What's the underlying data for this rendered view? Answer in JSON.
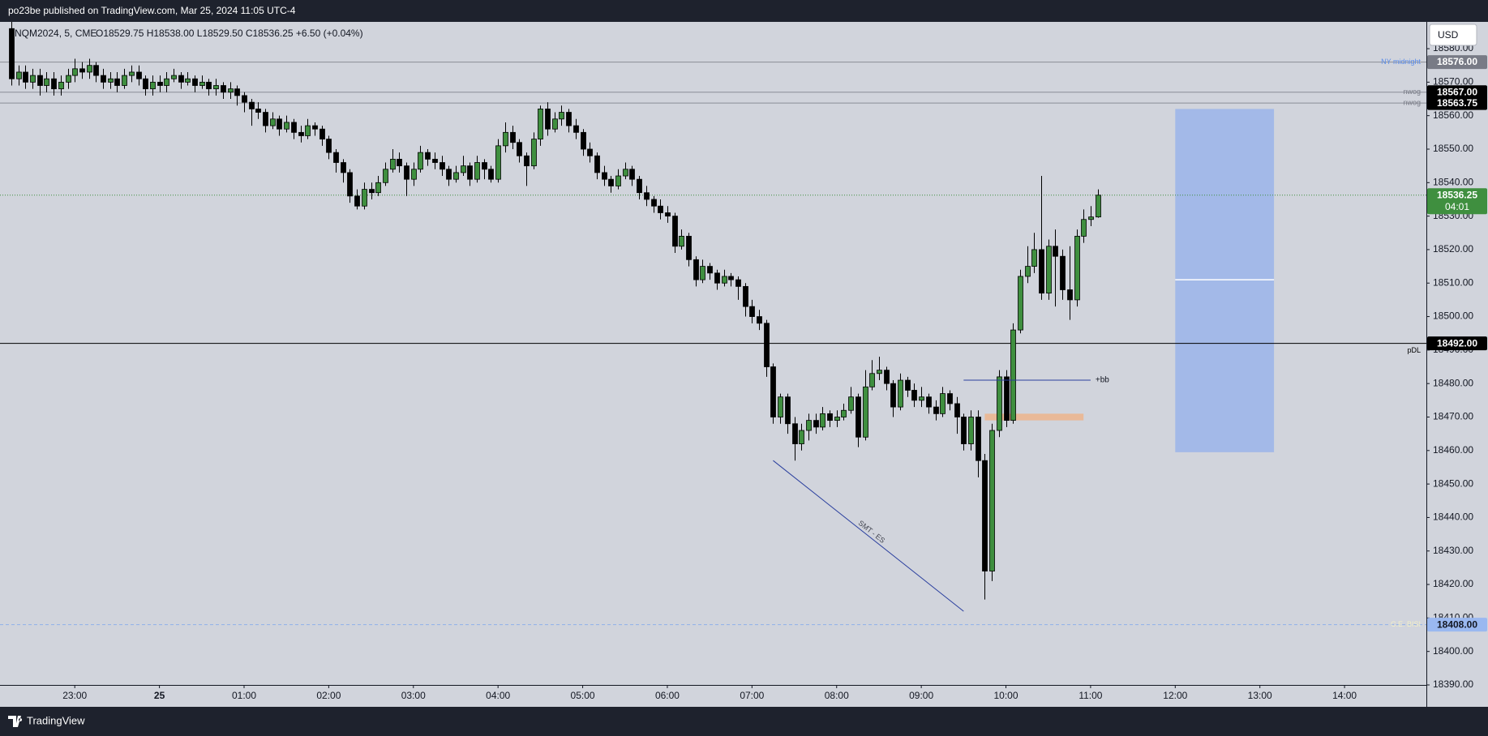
{
  "header": {
    "publisher": "po23be published on TradingView.com, Mar 25, 2024 11:05 UTC-4",
    "symbol": "NQM2024, 5, CME",
    "ohlc": "O18529.75 H18538.00 L18529.50 C18536.25 +6.50 (+0.04%)"
  },
  "toolbar": {
    "currency": "USD"
  },
  "footer": {
    "brand": "TradingView"
  },
  "chart_data": {
    "type": "candlestick",
    "up_color": "#3f8f3f",
    "down_color": "#000000",
    "wick_color": "#000000",
    "xlim": [
      "22:07",
      "14:58"
    ],
    "ylim": [
      18390,
      18588
    ],
    "xticks": [
      "23:00",
      {
        "value": "00:00",
        "label": "25"
      },
      "01:00",
      "02:00",
      "03:00",
      "04:00",
      "05:00",
      "06:00",
      "07:00",
      "08:00",
      "09:00",
      "10:00",
      "11:00",
      "12:00",
      "13:00",
      "14:00"
    ],
    "yticks": [
      {
        "value": 18390,
        "label": "18390.00"
      },
      {
        "value": 18400,
        "label": "18400.00"
      },
      {
        "value": 18410,
        "label": "18410.00"
      },
      {
        "value": 18420,
        "label": "18420.00"
      },
      {
        "value": 18430,
        "label": "18430.00"
      },
      {
        "value": 18440,
        "label": "18440.00"
      },
      {
        "value": 18450,
        "label": "18450.00"
      },
      {
        "value": 18460,
        "label": "18460.00"
      },
      {
        "value": 18470,
        "label": "18470.00"
      },
      {
        "value": 18480,
        "label": "18480.00"
      },
      {
        "value": 18490,
        "label": "18490.00"
      },
      {
        "value": 18500,
        "label": "18500.00"
      },
      {
        "value": 18510,
        "label": "18510.00"
      },
      {
        "value": 18520,
        "label": "18520.00"
      },
      {
        "value": 18530,
        "label": "18530.00"
      },
      {
        "value": 18540,
        "label": "18540.00"
      },
      {
        "value": 18550,
        "label": "18550.00"
      },
      {
        "value": 18560,
        "label": "18560.00"
      },
      {
        "value": 18570,
        "label": "18570.00"
      },
      {
        "value": 18580,
        "label": "18580.00"
      }
    ],
    "x": [
      "22:15",
      "22:20",
      "22:25",
      "22:30",
      "22:35",
      "22:40",
      "22:45",
      "22:50",
      "22:55",
      "23:00",
      "23:05",
      "23:10",
      "23:15",
      "23:20",
      "23:25",
      "23:30",
      "23:35",
      "23:40",
      "23:45",
      "23:50",
      "23:55",
      "00:00",
      "00:05",
      "00:10",
      "00:15",
      "00:20",
      "00:25",
      "00:30",
      "00:35",
      "00:40",
      "00:45",
      "00:50",
      "00:55",
      "01:00",
      "01:05",
      "01:10",
      "01:15",
      "01:20",
      "01:25",
      "01:30",
      "01:35",
      "01:40",
      "01:45",
      "01:50",
      "01:55",
      "02:00",
      "02:05",
      "02:10",
      "02:15",
      "02:20",
      "02:25",
      "02:30",
      "02:35",
      "02:40",
      "02:45",
      "02:50",
      "02:55",
      "03:00",
      "03:05",
      "03:10",
      "03:15",
      "03:20",
      "03:25",
      "03:30",
      "03:35",
      "03:40",
      "03:45",
      "03:50",
      "03:55",
      "04:00",
      "04:05",
      "04:10",
      "04:15",
      "04:20",
      "04:25",
      "04:30",
      "04:35",
      "04:40",
      "04:45",
      "04:50",
      "04:55",
      "05:00",
      "05:05",
      "05:10",
      "05:15",
      "05:20",
      "05:25",
      "05:30",
      "05:35",
      "05:40",
      "05:45",
      "05:50",
      "05:55",
      "06:00",
      "06:05",
      "06:10",
      "06:15",
      "06:20",
      "06:25",
      "06:30",
      "06:35",
      "06:40",
      "06:45",
      "06:50",
      "06:55",
      "07:00",
      "07:05",
      "07:10",
      "07:15",
      "07:20",
      "07:25",
      "07:30",
      "07:35",
      "07:40",
      "07:45",
      "07:50",
      "07:55",
      "08:00",
      "08:05",
      "08:10",
      "08:15",
      "08:20",
      "08:25",
      "08:30",
      "08:35",
      "08:40",
      "08:45",
      "08:50",
      "08:55",
      "09:00",
      "09:05",
      "09:10",
      "09:15",
      "09:20",
      "09:25",
      "09:30",
      "09:35",
      "09:40",
      "09:45",
      "09:50",
      "09:55",
      "10:00",
      "10:05",
      "10:10",
      "10:15",
      "10:20",
      "10:25",
      "10:30",
      "10:35",
      "10:40",
      "10:45",
      "10:50",
      "10:55",
      "11:00",
      "11:05"
    ],
    "candles": [
      [
        18586,
        18588,
        18569,
        18571
      ],
      [
        18571,
        18575,
        18569,
        18573
      ],
      [
        18573,
        18575,
        18568,
        18570
      ],
      [
        18570,
        18574,
        18568,
        18572
      ],
      [
        18572,
        18574,
        18566,
        18569
      ],
      [
        18569,
        18573,
        18567,
        18571
      ],
      [
        18571,
        18573,
        18566,
        18568
      ],
      [
        18568,
        18572,
        18566,
        18570
      ],
      [
        18570,
        18574,
        18568,
        18572
      ],
      [
        18572,
        18577,
        18570,
        18574
      ],
      [
        18574,
        18576,
        18571,
        18573
      ],
      [
        18573,
        18577,
        18571,
        18575
      ],
      [
        18575,
        18576,
        18570,
        18572
      ],
      [
        18572,
        18574,
        18568,
        18570
      ],
      [
        18570,
        18573,
        18568,
        18571
      ],
      [
        18571,
        18573,
        18567,
        18569
      ],
      [
        18569,
        18574,
        18568,
        18572
      ],
      [
        18572,
        18575,
        18570,
        18573
      ],
      [
        18573,
        18575,
        18569,
        18571
      ],
      [
        18571,
        18572,
        18566,
        18568
      ],
      [
        18568,
        18572,
        18566,
        18570
      ],
      [
        18570,
        18572,
        18567,
        18569
      ],
      [
        18569,
        18573,
        18567,
        18571
      ],
      [
        18571,
        18574,
        18570,
        18572
      ],
      [
        18572,
        18573,
        18568,
        18570
      ],
      [
        18570,
        18573,
        18569,
        18571
      ],
      [
        18571,
        18572,
        18567,
        18569
      ],
      [
        18569,
        18572,
        18568,
        18570
      ],
      [
        18570,
        18571,
        18566,
        18568
      ],
      [
        18568,
        18571,
        18566,
        18569
      ],
      [
        18569,
        18570,
        18565,
        18567
      ],
      [
        18567,
        18570,
        18565,
        18568
      ],
      [
        18568,
        18569,
        18563,
        18566
      ],
      [
        18566,
        18567,
        18561,
        18564
      ],
      [
        18564,
        18565,
        18557,
        18562
      ],
      [
        18562,
        18564,
        18559,
        18561
      ],
      [
        18561,
        18562,
        18555,
        18557
      ],
      [
        18557,
        18561,
        18556,
        18559
      ],
      [
        18559,
        18560,
        18554,
        18556
      ],
      [
        18556,
        18560,
        18555,
        18558
      ],
      [
        18558,
        18559,
        18553,
        18555
      ],
      [
        18555,
        18557,
        18552,
        18554
      ],
      [
        18554,
        18559,
        18553,
        18557
      ],
      [
        18557,
        18558,
        18554,
        18556
      ],
      [
        18556,
        18557,
        18551,
        18553
      ],
      [
        18553,
        18554,
        18547,
        18549
      ],
      [
        18549,
        18550,
        18543,
        18546
      ],
      [
        18546,
        18547,
        18540,
        18543
      ],
      [
        18543,
        18544,
        18534,
        18536
      ],
      [
        18536,
        18538,
        18532,
        18533
      ],
      [
        18533,
        18540,
        18532,
        18538
      ],
      [
        18538,
        18540,
        18535,
        18537
      ],
      [
        18537,
        18542,
        18536,
        18540
      ],
      [
        18540,
        18546,
        18539,
        18544
      ],
      [
        18544,
        18550,
        18543,
        18547
      ],
      [
        18547,
        18549,
        18543,
        18545
      ],
      [
        18545,
        18546,
        18536,
        18541
      ],
      [
        18541,
        18546,
        18539,
        18544
      ],
      [
        18544,
        18551,
        18543,
        18549
      ],
      [
        18549,
        18550,
        18545,
        18547
      ],
      [
        18547,
        18549,
        18544,
        18546
      ],
      [
        18546,
        18548,
        18542,
        18544
      ],
      [
        18544,
        18545,
        18539,
        18541
      ],
      [
        18541,
        18545,
        18540,
        18543
      ],
      [
        18543,
        18548,
        18542,
        18545
      ],
      [
        18545,
        18546,
        18539,
        18541
      ],
      [
        18541,
        18548,
        18540,
        18546
      ],
      [
        18546,
        18547,
        18541,
        18544
      ],
      [
        18544,
        18545,
        18540,
        18541
      ],
      [
        18541,
        18553,
        18540,
        18551
      ],
      [
        18551,
        18558,
        18549,
        18555
      ],
      [
        18555,
        18557,
        18550,
        18552
      ],
      [
        18552,
        18553,
        18546,
        18548
      ],
      [
        18548,
        18549,
        18539,
        18545
      ],
      [
        18545,
        18555,
        18544,
        18553
      ],
      [
        18553,
        18563,
        18551,
        18562
      ],
      [
        18562,
        18564,
        18554,
        18556
      ],
      [
        18556,
        18561,
        18555,
        18559
      ],
      [
        18559,
        18563,
        18557,
        18561
      ],
      [
        18561,
        18562,
        18555,
        18557
      ],
      [
        18557,
        18559,
        18553,
        18555
      ],
      [
        18555,
        18556,
        18548,
        18550
      ],
      [
        18550,
        18552,
        18546,
        18548
      ],
      [
        18548,
        18549,
        18541,
        18543
      ],
      [
        18543,
        18545,
        18539,
        18541
      ],
      [
        18541,
        18542,
        18537,
        18539
      ],
      [
        18539,
        18544,
        18538,
        18542
      ],
      [
        18542,
        18546,
        18541,
        18544
      ],
      [
        18544,
        18545,
        18539,
        18541
      ],
      [
        18541,
        18542,
        18535,
        18537
      ],
      [
        18537,
        18539,
        18533,
        18535
      ],
      [
        18535,
        18536,
        18531,
        18533
      ],
      [
        18533,
        18535,
        18529,
        18531
      ],
      [
        18531,
        18533,
        18528,
        18530
      ],
      [
        18530,
        18531,
        18519,
        18521
      ],
      [
        18521,
        18526,
        18520,
        18524
      ],
      [
        18524,
        18525,
        18515,
        18517
      ],
      [
        18517,
        18518,
        18509,
        18511
      ],
      [
        18511,
        18517,
        18510,
        18515
      ],
      [
        18515,
        18516,
        18511,
        18513
      ],
      [
        18513,
        18514,
        18508,
        18510
      ],
      [
        18510,
        18514,
        18509,
        18512
      ],
      [
        18512,
        18513,
        18509,
        18511
      ],
      [
        18511,
        18512,
        18505,
        18509
      ],
      [
        18509,
        18510,
        18500,
        18503
      ],
      [
        18503,
        18505,
        18498,
        18500
      ],
      [
        18500,
        18502,
        18496,
        18498
      ],
      [
        18498,
        18499,
        18482,
        18485
      ],
      [
        18485,
        18486,
        18468,
        18470
      ],
      [
        18470,
        18477,
        18468,
        18476
      ],
      [
        18476,
        18477,
        18465,
        18468
      ],
      [
        18468,
        18470,
        18457,
        18462
      ],
      [
        18462,
        18468,
        18460,
        18466
      ],
      [
        18466,
        18471,
        18463,
        18469
      ],
      [
        18469,
        18471,
        18465,
        18467
      ],
      [
        18467,
        18473,
        18466,
        18471
      ],
      [
        18471,
        18472,
        18467,
        18469
      ],
      [
        18469,
        18472,
        18467,
        18470
      ],
      [
        18470,
        18474,
        18469,
        18472
      ],
      [
        18472,
        18479,
        18471,
        18476
      ],
      [
        18476,
        18477,
        18461,
        18464
      ],
      [
        18464,
        18484,
        18463,
        18479
      ],
      [
        18479,
        18487,
        18478,
        18483
      ],
      [
        18483,
        18488,
        18481,
        18484
      ],
      [
        18484,
        18485,
        18478,
        18480
      ],
      [
        18480,
        18481,
        18470,
        18473
      ],
      [
        18473,
        18483,
        18472,
        18481
      ],
      [
        18481,
        18482,
        18476,
        18478
      ],
      [
        18478,
        18480,
        18473,
        18475
      ],
      [
        18475,
        18479,
        18473,
        18476
      ],
      [
        18476,
        18477,
        18471,
        18473
      ],
      [
        18473,
        18475,
        18469,
        18471
      ],
      [
        18471,
        18479,
        18470,
        18477
      ],
      [
        18477,
        18478,
        18472,
        18474
      ],
      [
        18474,
        18476,
        18465,
        18470
      ],
      [
        18470,
        18471,
        18460,
        18462
      ],
      [
        18462,
        18472,
        18460,
        18470
      ],
      [
        18470,
        18472,
        18452,
        18457
      ],
      [
        18457,
        18459,
        18415.5,
        18424
      ],
      [
        18424,
        18468,
        18421,
        18466
      ],
      [
        18466,
        18484,
        18464,
        18482
      ],
      [
        18482,
        18484,
        18467,
        18469
      ],
      [
        18469,
        18498,
        18468,
        18496
      ],
      [
        18496,
        18514,
        18495,
        18512
      ],
      [
        18512,
        18521,
        18510,
        18515
      ],
      [
        18515,
        18525,
        18513,
        18520
      ],
      [
        18520,
        18542,
        18505,
        18507
      ],
      [
        18507,
        18523,
        18505,
        18521
      ],
      [
        18521,
        18526,
        18503,
        18518
      ],
      [
        18518,
        18520,
        18505,
        18508
      ],
      [
        18508,
        18521,
        18499,
        18505
      ],
      [
        18505,
        18526,
        18503,
        18524
      ],
      [
        18524,
        18532,
        18522,
        18529
      ],
      [
        18529,
        18533,
        18527,
        18529.75
      ],
      [
        18529.75,
        18538,
        18529.5,
        18536.25
      ]
    ],
    "levels": [
      {
        "label": "NY midnight",
        "value": 18576,
        "tag": "18576.00",
        "color": "#8a8d96",
        "text_color": "#5b8ce8",
        "tag_color": "#787b86",
        "tag_text_color": "#ffffff",
        "style": "solid",
        "label_side": "on"
      },
      {
        "label": "nwog",
        "value": 18567,
        "tag": "18567.00",
        "color": "#8a8d96",
        "text_color": "#787b86",
        "tag_color": "#000000",
        "tag_text_color": "#ffffff",
        "style": "solid",
        "label_side": "on"
      },
      {
        "label": "nwog",
        "value": 18563.75,
        "tag": "18563.75",
        "color": "#8a8d96",
        "text_color": "#787b86",
        "tag_color": "#000000",
        "tag_text_color": "#ffffff",
        "style": "solid",
        "label_side": "on"
      },
      {
        "label": "pDL",
        "value": 18492,
        "tag": "18492.00",
        "color": "#000000",
        "text_color": "#000000",
        "tag_color": "#000000",
        "tag_text_color": "#ffffff",
        "style": "solid",
        "label_side": "below"
      },
      {
        "label": "C.E. BISI",
        "value": 18408,
        "tag": "18408.00",
        "color": "#8fb0ea",
        "text_color": "#f3efc8",
        "tag_color": "#9ab8f0",
        "tag_text_color": "#131722",
        "style": "dashed",
        "label_side": "on"
      }
    ],
    "last": {
      "value": 18536.25,
      "tag": "18536.25",
      "countdown": "04:01",
      "color": "#3f8f3f"
    },
    "drawings": {
      "smt": {
        "x": [
          "07:15",
          "09:30"
        ],
        "y": [
          18457,
          18412
        ],
        "label": "SMT - ES",
        "color": "#2a3f9e"
      },
      "bb": {
        "x": [
          "09:30",
          "11:00"
        ],
        "y": 18481,
        "label": "+bb",
        "color": "#2a3f9e"
      },
      "zone": {
        "x": [
          "09:45",
          "10:55"
        ],
        "y": [
          18469,
          18471
        ],
        "color": "#e9b998"
      },
      "target": {
        "x": [
          "12:00",
          "13:10"
        ],
        "y": [
          18459.5,
          18562
        ],
        "mid": 18511,
        "color": "#a3b9e8"
      }
    }
  }
}
